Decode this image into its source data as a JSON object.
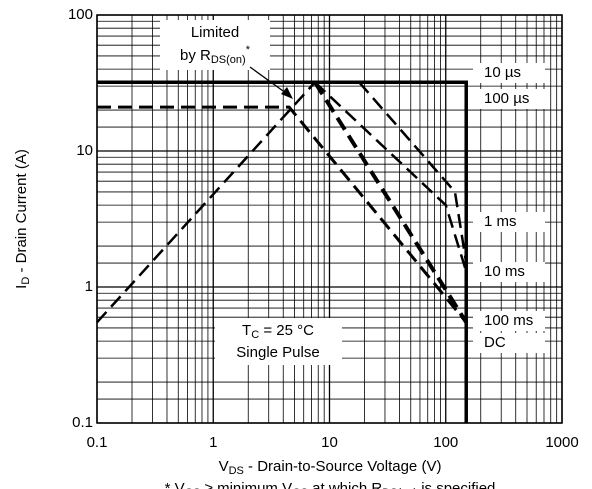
{
  "chart_data": {
    "type": "line",
    "x_label_parts": [
      "V",
      "DS",
      " - Drain-to-Source Voltage (V)"
    ],
    "y_label_parts": [
      "I",
      "D",
      "  - Drain Current (A)"
    ],
    "footnote_parts": [
      "* V",
      "GS",
      " ≥ minimum V",
      "GS",
      " at which R",
      "DS(on)",
      " is specified"
    ],
    "limit_label_parts": [
      "Limited",
      "by R",
      "DS(on)",
      "*"
    ],
    "condition_parts": [
      "T",
      "C",
      " = 25 °C"
    ],
    "condition_line2": "Single Pulse",
    "curve_labels": [
      "10 µs",
      "100 µs",
      "1 ms",
      "10 ms",
      "100 ms",
      "DC"
    ],
    "log_x": true,
    "log_y": true,
    "grid": true,
    "minor_grid": true,
    "xlim": [
      0.1,
      1000
    ],
    "xticks": [
      0.1,
      1,
      10,
      100,
      1000
    ],
    "ylim": [
      0.1,
      100
    ],
    "yticks": [
      0.1,
      1,
      10,
      100
    ],
    "series": [
      {
        "color": "#000000",
        "style": "dashed",
        "width": 2.5,
        "x": [
          0.1,
          7.5
        ],
        "values": [
          0.55,
          32
        ]
      },
      {
        "color": "#000000",
        "style": "solid",
        "width": 3.5,
        "x": [
          0.1,
          150,
          150
        ],
        "values": [
          32,
          32,
          0.1
        ]
      },
      {
        "color": "#000000",
        "style": "dashed",
        "width": 3,
        "x": [
          0.1,
          4.5,
          150
        ],
        "values": [
          21,
          21,
          0.55
        ]
      },
      {
        "color": "#000000",
        "style": "dashed",
        "width": 2.5,
        "x": [
          18,
          120,
          150
        ],
        "values": [
          32,
          5,
          1.5
        ]
      },
      {
        "color": "#000000",
        "style": "dashed",
        "width": 2.5,
        "x": [
          7.5,
          100,
          150
        ],
        "values": [
          32,
          4,
          1.3
        ]
      },
      {
        "color": "#000000",
        "style": "dashed",
        "width": 4,
        "x": [
          7.5,
          150
        ],
        "values": [
          32,
          0.55
        ]
      }
    ]
  }
}
